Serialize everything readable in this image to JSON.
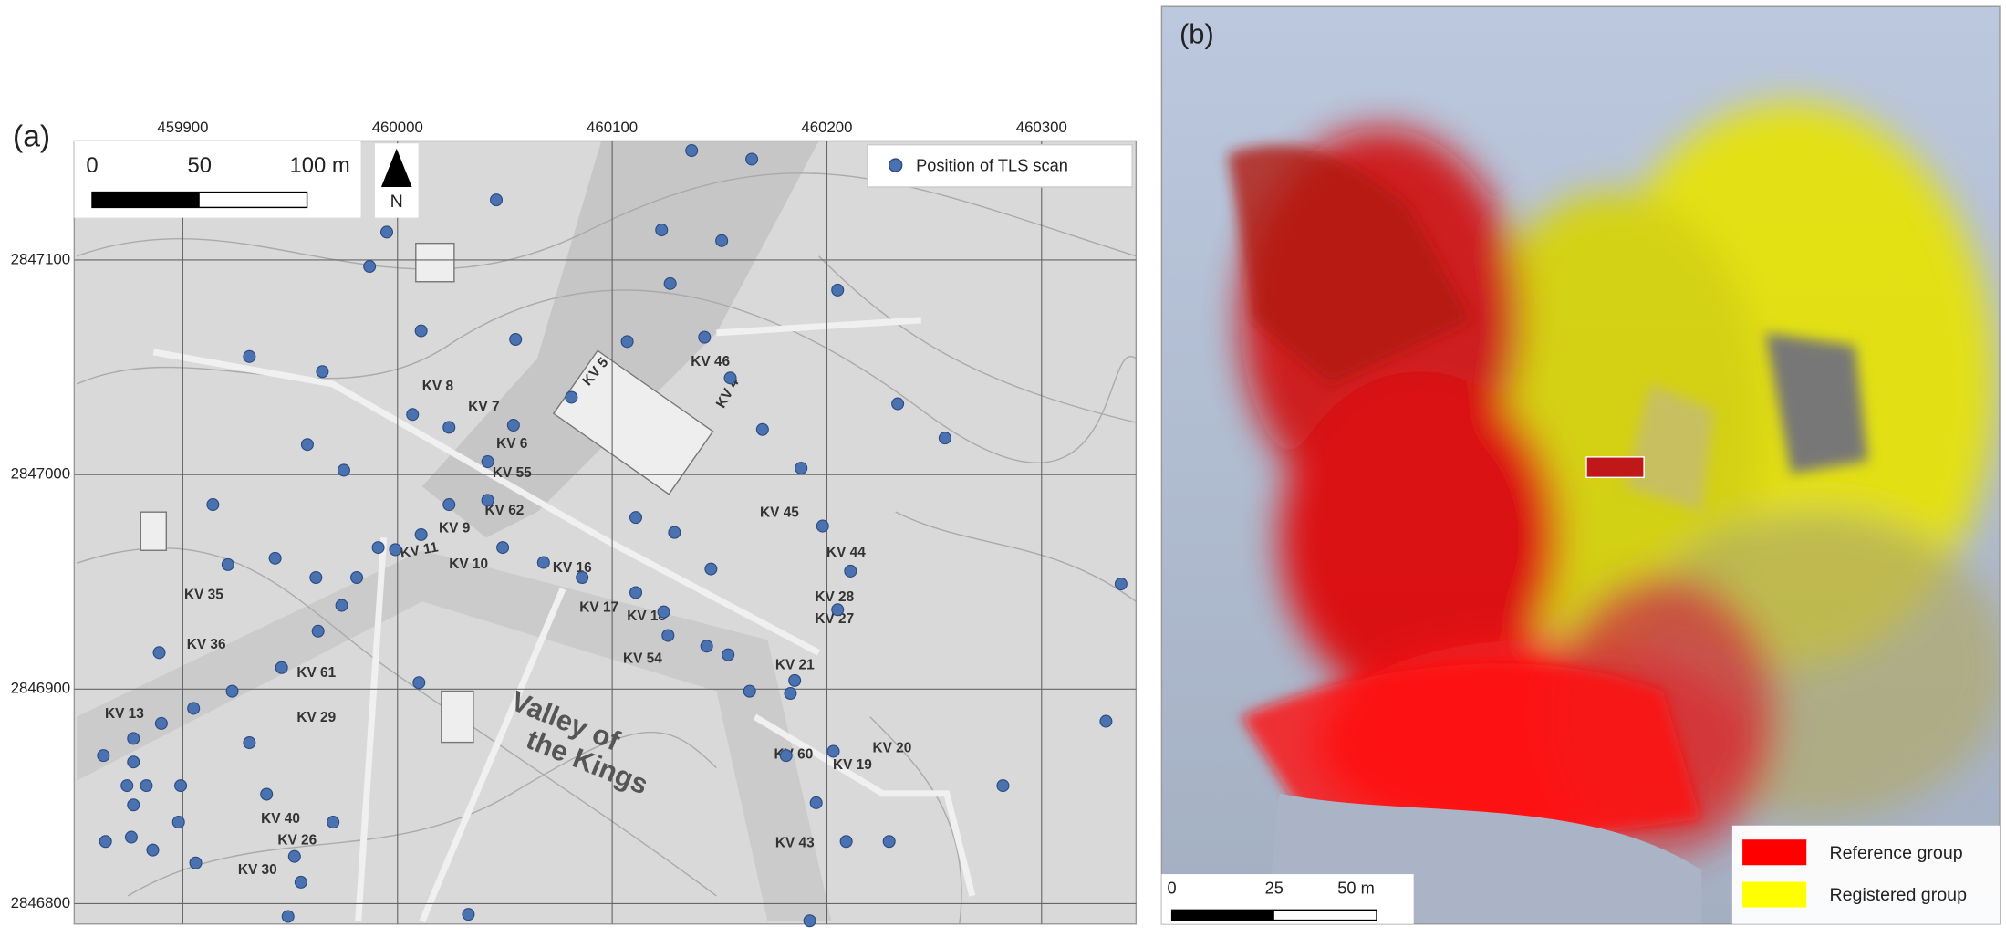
{
  "chart_data": [
    {
      "type": "scatter",
      "panel_label": "(a)",
      "xticks": [
        459900,
        460000,
        460100,
        460200,
        460300
      ],
      "xlim": [
        459849.4,
        460344
      ],
      "yticks": [
        2847100,
        2847000,
        2846900,
        2846800
      ],
      "ylim": [
        2846790.5,
        2847155.5
      ],
      "grid": true,
      "legend": "upper right",
      "scale_bar": [
        "0",
        "50",
        "100 m"
      ],
      "north": "N",
      "series": [
        {
          "name": "Position of TLS scan",
          "color": "#4a72b0",
          "x": [
            460137,
            460165,
            460046,
            459995,
            459987,
            460123,
            460151,
            460127,
            460205,
            460011,
            460055,
            460107,
            460143,
            459931,
            459965,
            460155,
            460233,
            460007,
            460024,
            460054,
            460081,
            460170,
            460255,
            459958,
            459975,
            460042,
            460188,
            459914,
            460024,
            460042,
            460111,
            460129,
            460198,
            459991,
            459999,
            460011,
            460049,
            460068,
            460086,
            460211,
            459921,
            459943,
            459962,
            459981,
            459974,
            460111,
            460124,
            460146,
            460205,
            459963,
            460126,
            460144,
            460154,
            459889,
            459946,
            459923,
            460010,
            460185,
            460164,
            460183,
            459905,
            459890,
            459931,
            460330,
            459863,
            459877,
            459877,
            459874,
            459877,
            459883,
            459899,
            459939,
            459970,
            460181,
            460203,
            460282,
            460195,
            459898,
            459864,
            459876,
            459886,
            459906,
            459952,
            459955,
            459949,
            460033,
            460192,
            460209,
            460229,
            460337
          ],
          "y": [
            2847151,
            2847147,
            2847128,
            2847113,
            2847097,
            2847114,
            2847109,
            2847089,
            2847086,
            2847067,
            2847063,
            2847062,
            2847064,
            2847055,
            2847048,
            2847045,
            2847033,
            2847028,
            2847022,
            2847023,
            2847036,
            2847021,
            2847017,
            2847014,
            2847002,
            2847006,
            2847003,
            2846986,
            2846986,
            2846988,
            2846980,
            2846973,
            2846976,
            2846966,
            2846965,
            2846972,
            2846966,
            2846959,
            2846952,
            2846955,
            2846958,
            2846961,
            2846952,
            2846952,
            2846939,
            2846945,
            2846936,
            2846956,
            2846937,
            2846927,
            2846925,
            2846920,
            2846916,
            2846917,
            2846910,
            2846899,
            2846903,
            2846904,
            2846899,
            2846898,
            2846891,
            2846884,
            2846875,
            2846885,
            2846869,
            2846877,
            2846866,
            2846855,
            2846846,
            2846855,
            2846855,
            2846851,
            2846838,
            2846869,
            2846871,
            2846855,
            2846847,
            2846838,
            2846829,
            2846831,
            2846825,
            2846819,
            2846822,
            2846810,
            2846794,
            2846795,
            2846792,
            2846829,
            2846829,
            2846949
          ]
        }
      ],
      "map_labels": [
        "Valley of",
        "the Kings",
        "KV 8",
        "KV 7",
        "KV 6",
        "KV 5",
        "KV 4",
        "KV 46",
        "KV 55",
        "KV 62",
        "KV 9",
        "KV 10",
        "KV 11",
        "KV 16",
        "KV 17",
        "KV 18",
        "KV 54",
        "KV 21",
        "KV 45",
        "KV 44",
        "KV 28",
        "KV 27",
        "KV 20",
        "KV 19",
        "KV 60",
        "KV 43",
        "KV 36",
        "KV 35",
        "KV 61",
        "KV 29",
        "KV 40",
        "KV 26",
        "KV 30",
        "KV 13"
      ]
    },
    {
      "type": "image",
      "panel_label": "(b)",
      "scale_bar": [
        "0",
        "25",
        "50 m"
      ],
      "legend": "lower right",
      "series": [
        {
          "name": "Reference group",
          "color": "#ff0000"
        },
        {
          "name": "Registered group",
          "color": "#ffff00"
        }
      ]
    }
  ]
}
